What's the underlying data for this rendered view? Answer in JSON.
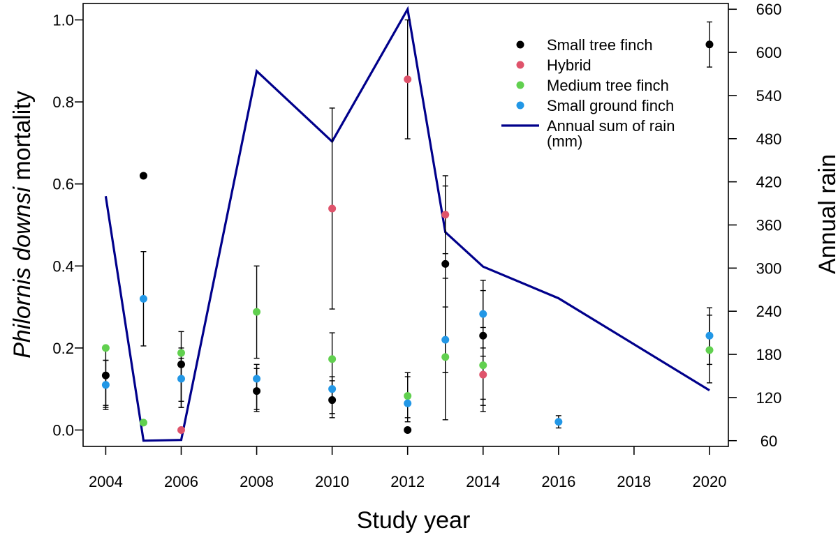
{
  "chart_data": {
    "type": "scatter",
    "title": "",
    "xlabel": "Study year",
    "ylabel_italic": "Philornis downsi",
    "ylabel_rest": " mortality",
    "y2label": "Annual rain",
    "xlim": [
      2003.4,
      2020.5
    ],
    "ylim": [
      -0.04,
      1.04
    ],
    "y2lim": [
      52,
      668
    ],
    "x_ticks": [
      2004,
      2006,
      2008,
      2010,
      2012,
      2014,
      2016,
      2018,
      2020
    ],
    "y_ticks": [
      0.0,
      0.2,
      0.4,
      0.6,
      0.8,
      1.0
    ],
    "y_tick_labels": [
      "0.0",
      "0.2",
      "0.4",
      "0.6",
      "0.8",
      "1.0"
    ],
    "y2_ticks": [
      60,
      120,
      180,
      240,
      300,
      360,
      420,
      480,
      540,
      600,
      660
    ],
    "series": [
      {
        "name": "Small tree finch",
        "color": "#000000",
        "points": [
          {
            "x": 2004,
            "y": 0.133,
            "lo": 0.055,
            "hi": 0.205
          },
          {
            "x": 2005,
            "y": 0.62
          },
          {
            "x": 2006,
            "y": 0.16,
            "lo": 0.07,
            "hi": 0.24
          },
          {
            "x": 2008,
            "y": 0.095,
            "lo": 0.045,
            "hi": 0.15
          },
          {
            "x": 2010,
            "y": 0.073,
            "lo": 0.03,
            "hi": 0.13
          },
          {
            "x": 2012,
            "y": 0.0
          },
          {
            "x": 2013,
            "y": 0.405,
            "lo": 0.14,
            "hi": 0.595
          },
          {
            "x": 2014,
            "y": 0.23,
            "lo": 0.045,
            "hi": 0.34
          },
          {
            "x": 2020,
            "y": 0.94,
            "lo": 0.885,
            "hi": 0.995
          }
        ]
      },
      {
        "name": "Hybrid",
        "color": "#df536b",
        "points": [
          {
            "x": 2006,
            "y": 0.0
          },
          {
            "x": 2010,
            "y": 0.54,
            "lo": 0.295,
            "hi": 0.785
          },
          {
            "x": 2012,
            "y": 0.855,
            "lo": 0.71,
            "hi": 1.0
          },
          {
            "x": 2013,
            "y": 0.525,
            "lo": 0.43,
            "hi": 0.62
          },
          {
            "x": 2014,
            "y": 0.135,
            "lo": 0.075,
            "hi": 0.2
          }
        ]
      },
      {
        "name": "Medium tree finch",
        "color": "#61d04f",
        "points": [
          {
            "x": 2004,
            "y": 0.2,
            "lo": 0.06,
            "hi": 0.17
          },
          {
            "x": 2005,
            "y": 0.018
          },
          {
            "x": 2006,
            "y": 0.188,
            "lo": 0.055,
            "hi": 0.2
          },
          {
            "x": 2008,
            "y": 0.288,
            "lo": 0.175,
            "hi": 0.4
          },
          {
            "x": 2010,
            "y": 0.173,
            "lo": 0.04,
            "hi": 0.237
          },
          {
            "x": 2012,
            "y": 0.083,
            "lo": 0.02,
            "hi": 0.14
          },
          {
            "x": 2013,
            "y": 0.178,
            "lo": 0.025,
            "hi": 0.3
          },
          {
            "x": 2014,
            "y": 0.158,
            "lo": 0.06,
            "hi": 0.25
          },
          {
            "x": 2020,
            "y": 0.195,
            "lo": 0.115,
            "hi": 0.28
          }
        ]
      },
      {
        "name": "Small ground finch",
        "color": "#2297e6",
        "points": [
          {
            "x": 2004,
            "y": 0.11,
            "lo": 0.05,
            "hi": 0.17
          },
          {
            "x": 2005,
            "y": 0.32,
            "lo": 0.205,
            "hi": 0.435
          },
          {
            "x": 2006,
            "y": 0.125,
            "lo": 0.055,
            "hi": 0.175
          },
          {
            "x": 2008,
            "y": 0.125,
            "lo": 0.05,
            "hi": 0.16
          },
          {
            "x": 2010,
            "y": 0.1,
            "lo": 0.04,
            "hi": 0.12
          },
          {
            "x": 2012,
            "y": 0.065,
            "lo": 0.03,
            "hi": 0.13
          },
          {
            "x": 2013,
            "y": 0.22,
            "lo": 0.14,
            "hi": 0.37
          },
          {
            "x": 2014,
            "y": 0.283,
            "lo": 0.18,
            "hi": 0.365
          },
          {
            "x": 2016,
            "y": 0.02,
            "lo": 0.005,
            "hi": 0.035
          },
          {
            "x": 2020,
            "y": 0.23,
            "lo": 0.16,
            "hi": 0.298
          }
        ]
      }
    ],
    "rain_line": {
      "name": "Annual sum of rain (mm)",
      "color": "#00008b",
      "axis": "right",
      "x": [
        2004,
        2005,
        2006,
        2008,
        2010,
        2012,
        2013,
        2014,
        2016,
        2020
      ],
      "y": [
        400,
        60,
        61,
        574,
        476,
        660,
        350,
        302,
        258,
        130
      ]
    },
    "legend": {
      "position": "top-right",
      "entries": [
        {
          "label": "Small tree finch",
          "kind": "point",
          "color": "#000000"
        },
        {
          "label": "Hybrid",
          "kind": "point",
          "color": "#df536b"
        },
        {
          "label": "Medium tree finch",
          "kind": "point",
          "color": "#61d04f"
        },
        {
          "label": "Small ground finch",
          "kind": "point",
          "color": "#2297e6"
        },
        {
          "label": "Annual sum of rain",
          "label2": "(mm)",
          "kind": "line",
          "color": "#00008b"
        }
      ]
    }
  }
}
